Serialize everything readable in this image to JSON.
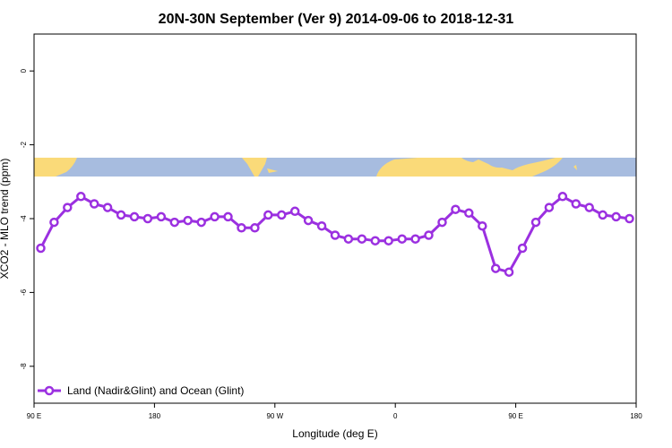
{
  "chart_data": {
    "type": "line",
    "title": "20N-30N September (Ver 9)   2014-09-06 to 2018-12-31",
    "xlabel": "Longitude (deg E)",
    "ylabel": "XCO2 - MLO trend (ppm)",
    "xlim": [
      90,
      540
    ],
    "ylim": [
      -9.0,
      1.0
    ],
    "x_ticks": [
      {
        "value": 90,
        "label": "90 E"
      },
      {
        "value": 180,
        "label": "180"
      },
      {
        "value": 270,
        "label": "90 W"
      },
      {
        "value": 360,
        "label": "0"
      },
      {
        "value": 450,
        "label": "90 E"
      },
      {
        "value": 540,
        "label": "180"
      }
    ],
    "y_ticks": [
      {
        "value": 0,
        "label": "0"
      },
      {
        "value": -2,
        "label": "-2"
      },
      {
        "value": -4,
        "label": "-4"
      },
      {
        "value": -6,
        "label": "-6"
      },
      {
        "value": -8,
        "label": "-8"
      }
    ],
    "grid": false,
    "legend_position": "bottom-left",
    "series": [
      {
        "name": "Land (Nadir&Glint) and Ocean (Glint)",
        "color": "#9b30e0",
        "x": [
          95,
          105,
          115,
          125,
          135,
          145,
          155,
          165,
          175,
          185,
          195,
          205,
          215,
          225,
          235,
          245,
          255,
          265,
          275,
          285,
          295,
          305,
          315,
          325,
          335,
          345,
          355,
          365,
          375,
          385,
          395,
          405,
          415,
          425,
          435,
          445,
          455,
          465,
          475,
          485,
          495,
          505,
          515,
          525,
          535
        ],
        "y": [
          -4.8,
          -4.1,
          -3.7,
          -3.4,
          -3.6,
          -3.7,
          -3.9,
          -3.95,
          -4.0,
          -3.95,
          -4.1,
          -4.05,
          -4.1,
          -3.95,
          -3.95,
          -4.25,
          -4.25,
          -3.9,
          -3.9,
          -3.8,
          -4.05,
          -4.2,
          -4.45,
          -4.55,
          -4.55,
          -4.6,
          -4.6,
          -4.55,
          -4.55,
          -4.45,
          -4.1,
          -3.75,
          -3.85,
          -4.2,
          -5.35,
          -5.45,
          -4.8,
          -4.1,
          -3.7,
          -3.4,
          -3.6,
          -3.7,
          -3.9,
          -3.95,
          -4.0
        ]
      }
    ],
    "map_strip": {
      "ocean_color": "#a7bcdf",
      "land_color": "#fada79",
      "y_top": -2.4,
      "y_bottom": -2.9
    }
  }
}
